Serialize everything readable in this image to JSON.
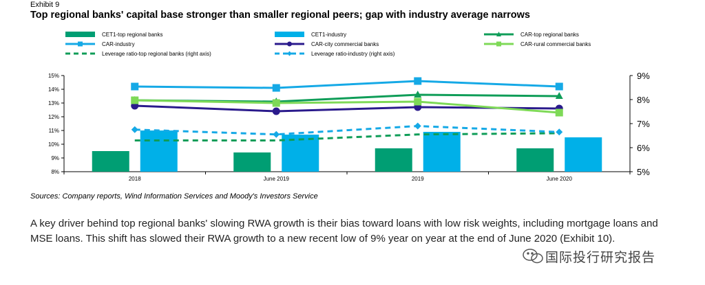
{
  "header": {
    "exhibit": "Exhibit 9",
    "title": "Top regional banks' capital base stronger than smaller regional peers; gap with industry average narrows"
  },
  "source_note": "Sources: Company reports, Wind Information Services and Moody's Investors Service",
  "body_text": "A key driver behind top regional banks' slowing RWA growth is their bias toward loans with low risk weights, including mortgage loans and MSE loans. This shift has slowed their RWA growth to a new recent low of 9% year on year at the end of June 2020 (Exhibit 10).",
  "watermark": {
    "text": "国际投行研究报告",
    "icon": "wechat-icon"
  },
  "chart_data": {
    "type": "bar",
    "categories": [
      "2018",
      "June 2019",
      "2019",
      "June 2020"
    ],
    "left_axis": {
      "ylim": [
        8,
        15
      ],
      "ticks": [
        "8%",
        "9%",
        "10%",
        "11%",
        "12%",
        "13%",
        "14%",
        "15%"
      ]
    },
    "right_axis": {
      "ylim": [
        5,
        9
      ],
      "ticks": [
        "5%",
        "6%",
        "7%",
        "8%",
        "9%"
      ]
    },
    "grid": false,
    "legend_position": "top",
    "bar_series": [
      {
        "name": "CET1-top regional banks",
        "color": "#009e73",
        "axis": "left",
        "values": [
          9.5,
          9.4,
          9.7,
          9.7
        ]
      },
      {
        "name": "CET1-industry",
        "color": "#00b0e8",
        "axis": "left",
        "values": [
          11.0,
          10.7,
          10.9,
          10.5
        ]
      }
    ],
    "line_series": [
      {
        "name": "CAR-top regional banks",
        "color": "#0f9d58",
        "marker": "triangle",
        "dashed": false,
        "axis": "left",
        "values": [
          13.2,
          13.1,
          13.6,
          13.5
        ]
      },
      {
        "name": "CAR-industry",
        "color": "#15a9e6",
        "marker": "square",
        "dashed": false,
        "axis": "left",
        "values": [
          14.2,
          14.1,
          14.6,
          14.2
        ]
      },
      {
        "name": "CAR-city commercial banks",
        "color": "#2a1a8c",
        "marker": "circle",
        "dashed": false,
        "axis": "left",
        "values": [
          12.8,
          12.4,
          12.7,
          12.6
        ]
      },
      {
        "name": "CAR-rural commercial banks",
        "color": "#7ed957",
        "marker": "square",
        "dashed": false,
        "axis": "left",
        "values": [
          13.2,
          13.0,
          13.1,
          12.3
        ]
      },
      {
        "name": "Leverage ratio-top regional banks (right axis)",
        "color": "#0f9d58",
        "marker": "none",
        "dashed": true,
        "axis": "right",
        "values": [
          6.3,
          6.3,
          6.55,
          6.6
        ]
      },
      {
        "name": "Leverage ratio-industry (right axis)",
        "color": "#15a9e6",
        "marker": "diamond",
        "dashed": true,
        "axis": "right",
        "values": [
          6.75,
          6.55,
          6.9,
          6.65
        ]
      }
    ]
  }
}
